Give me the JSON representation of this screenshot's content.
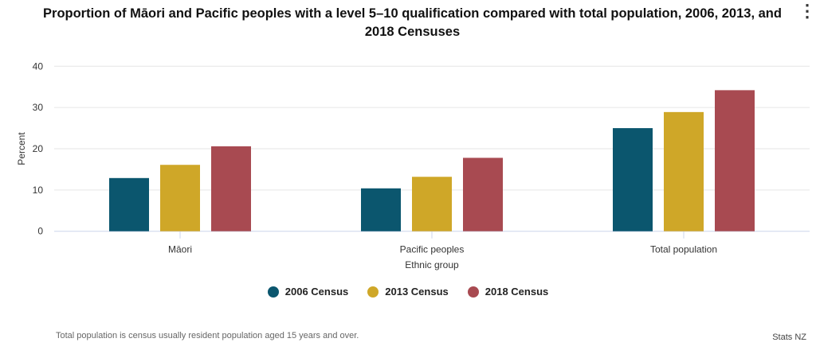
{
  "chart_data": {
    "type": "bar",
    "title": "Proportion of Māori and Pacific peoples with a level 5–10 qualification compared with total population, 2006, 2013, and 2018 Censuses",
    "xlabel": "Ethnic group",
    "ylabel": "Percent",
    "categories": [
      "Māori",
      "Pacific peoples",
      "Total population"
    ],
    "ylim": [
      0,
      40
    ],
    "yticks": [
      0,
      10,
      20,
      30,
      40
    ],
    "grid": true,
    "legend": "bottom",
    "series": [
      {
        "name": "2006 Census",
        "color": "#0b566e",
        "values": [
          12.9,
          10.4,
          25.0
        ]
      },
      {
        "name": "2013 Census",
        "color": "#cfa728",
        "values": [
          16.1,
          13.2,
          28.9
        ]
      },
      {
        "name": "2018 Census",
        "color": "#a84a51",
        "values": [
          20.6,
          17.8,
          34.2
        ]
      }
    ]
  },
  "note": "Total population is census usually resident population aged 15 years and over.",
  "credit": "Stats NZ",
  "menu_icon": "⋮"
}
